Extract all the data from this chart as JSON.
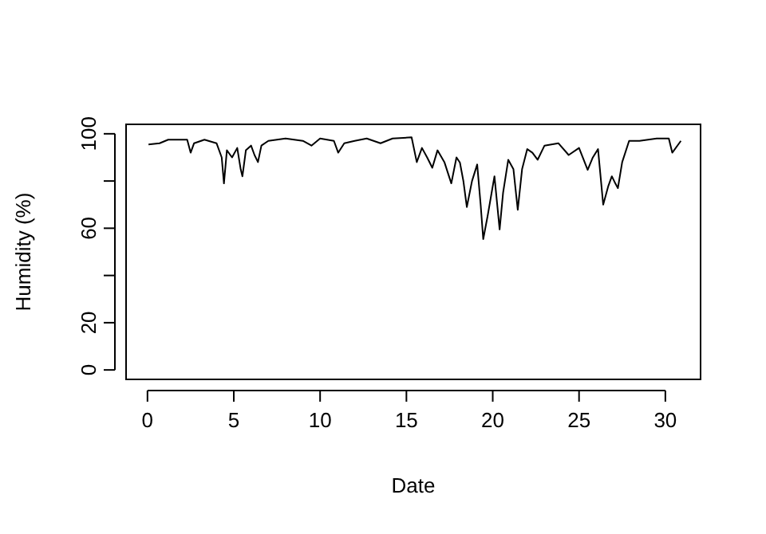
{
  "chart_data": {
    "type": "line",
    "xlabel": "Date",
    "ylabel": "Humidity (%)",
    "xlim": [
      -1.24,
      32.04
    ],
    "ylim": [
      -4,
      104
    ],
    "xticks": [
      0,
      5,
      10,
      15,
      20,
      25,
      30
    ],
    "yticks": [
      0,
      20,
      {
        "value": 40,
        "label": null
      },
      60,
      {
        "value": 80,
        "label": null
      },
      100
    ],
    "grid": false,
    "marker": "none",
    "line_style": "solid",
    "series": [
      {
        "color": "#000000",
        "x": [
          0.06,
          0.7,
          1.2,
          2.3,
          2.5,
          2.7,
          3.3,
          4.0,
          4.3,
          4.43,
          4.6,
          4.9,
          5.2,
          5.4,
          5.5,
          5.7,
          6.0,
          6.2,
          6.4,
          6.6,
          7.0,
          8.0,
          9.0,
          9.5,
          10.0,
          10.8,
          11.05,
          11.4,
          12.0,
          12.7,
          13.5,
          14.2,
          15.3,
          15.6,
          15.9,
          16.2,
          16.5,
          16.8,
          17.2,
          17.6,
          17.9,
          18.1,
          18.3,
          18.5,
          18.8,
          19.1,
          19.3,
          19.45,
          19.7,
          20.1,
          20.4,
          20.6,
          20.9,
          21.2,
          21.45,
          21.7,
          22.0,
          22.3,
          22.6,
          23.0,
          23.8,
          24.4,
          25.0,
          25.5,
          25.8,
          26.1,
          26.4,
          26.7,
          26.9,
          27.1,
          27.25,
          27.5,
          27.9,
          28.5,
          29.5,
          30.2,
          30.4,
          30.9
        ],
        "values": [
          95.5,
          96,
          97.5,
          97.5,
          92,
          96,
          97.5,
          96,
          90,
          79,
          93,
          90,
          94,
          85,
          82,
          93,
          95,
          91,
          88,
          95,
          97,
          98,
          97,
          95,
          98,
          97,
          92,
          96,
          97,
          98,
          96,
          98,
          98.5,
          88,
          94,
          90,
          85.6,
          93,
          88,
          79,
          90,
          87.8,
          80,
          69,
          80,
          87,
          70,
          55.4,
          65,
          82,
          59.5,
          75,
          89,
          85,
          67.8,
          85,
          93.5,
          92,
          89,
          95,
          96,
          91,
          94,
          84.7,
          90,
          93.5,
          70,
          78,
          82,
          79,
          77,
          88,
          97,
          97,
          98,
          98,
          92,
          97
        ]
      }
    ]
  }
}
